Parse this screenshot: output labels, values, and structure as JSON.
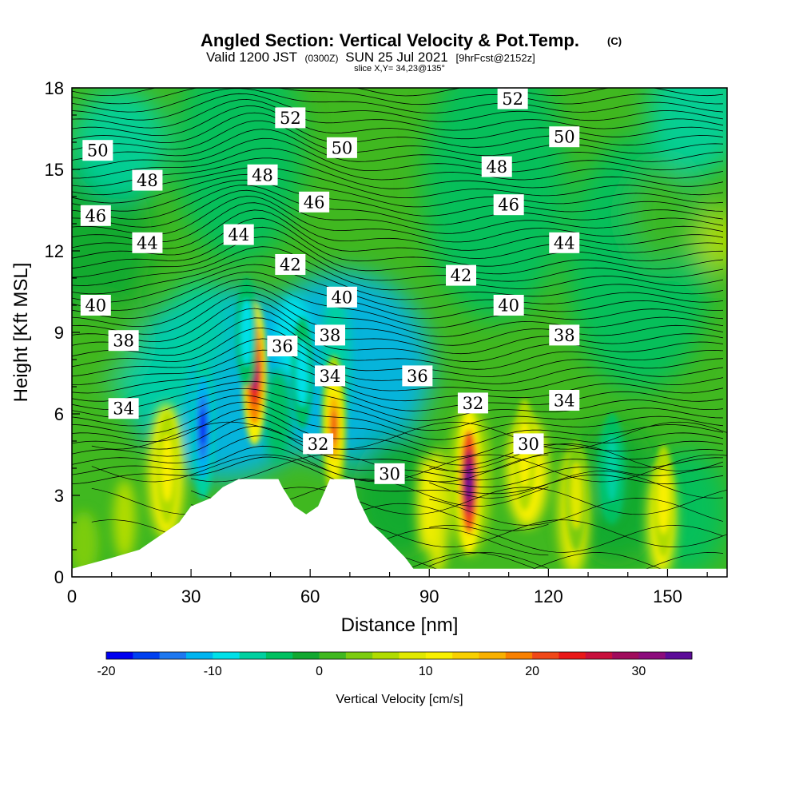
{
  "header": {
    "title": "Angled Section: Vertical Velocity & Pot.Temp.",
    "copyright": "(C)",
    "valid_prefix": "Valid 1200 JST",
    "valid_utc": "(0300Z)",
    "valid_date": "SUN 25 Jul 2021",
    "forecast": "[9hrFcst@2152z]",
    "slice": "slice X,Y= 34,23@135°"
  },
  "chart_data": {
    "type": "heatmap",
    "title": "Angled Section: Vertical Velocity & Pot.Temp.",
    "xlabel": "Distance [nm]",
    "ylabel": "Height [Kft MSL]",
    "xlim": [
      0,
      165
    ],
    "ylim": [
      0,
      18
    ],
    "x_ticks": [
      "0",
      "30",
      "60",
      "90",
      "120",
      "150"
    ],
    "y_ticks": [
      "0",
      "3",
      "6",
      "9",
      "12",
      "15",
      "18"
    ],
    "colorbar": {
      "label": "Vertical Velocity [cm/s]",
      "min": -20,
      "max": 35,
      "step": 2.5,
      "tick_labels": [
        "-20",
        "-10",
        "0",
        "10",
        "20",
        "30"
      ],
      "colors": [
        "#0000f0",
        "#0040f0",
        "#1e78f0",
        "#00b4f0",
        "#00e0e8",
        "#00d0a0",
        "#00c060",
        "#12a830",
        "#40b820",
        "#7ccc10",
        "#b0dc00",
        "#e0e800",
        "#f8f000",
        "#f8d000",
        "#f8b000",
        "#f88000",
        "#f04818",
        "#e81818",
        "#c8103c",
        "#a00c5c",
        "#8c0c7c",
        "#5c0c98"
      ]
    },
    "terrain_kft": [
      {
        "x": 0,
        "y": 0.3
      },
      {
        "x": 10,
        "y": 0.7
      },
      {
        "x": 17,
        "y": 1.0
      },
      {
        "x": 20,
        "y": 1.3
      },
      {
        "x": 23,
        "y": 1.6
      },
      {
        "x": 27,
        "y": 2.0
      },
      {
        "x": 30,
        "y": 2.6
      },
      {
        "x": 35,
        "y": 2.9
      },
      {
        "x": 38,
        "y": 3.3
      },
      {
        "x": 42,
        "y": 3.6
      },
      {
        "x": 52,
        "y": 3.6
      },
      {
        "x": 53,
        "y": 3.3
      },
      {
        "x": 56,
        "y": 2.6
      },
      {
        "x": 59,
        "y": 2.3
      },
      {
        "x": 62,
        "y": 2.6
      },
      {
        "x": 65,
        "y": 3.6
      },
      {
        "x": 71,
        "y": 3.6
      },
      {
        "x": 72,
        "y": 2.9
      },
      {
        "x": 75,
        "y": 2.0
      },
      {
        "x": 78,
        "y": 1.6
      },
      {
        "x": 80,
        "y": 1.3
      },
      {
        "x": 82,
        "y": 1.0
      },
      {
        "x": 84,
        "y": 0.7
      },
      {
        "x": 86,
        "y": 0.3
      },
      {
        "x": 165,
        "y": 0.3
      }
    ],
    "velocity_cells_cm_s": [
      {
        "x": 46,
        "y": 7.5,
        "value": 30
      },
      {
        "x": 66,
        "y": 5.5,
        "value": 20
      },
      {
        "x": 100,
        "y": 3.5,
        "value": 35
      },
      {
        "x": 24,
        "y": 4.0,
        "value": 10
      },
      {
        "x": 114,
        "y": 4.5,
        "value": 10
      },
      {
        "x": 127,
        "y": 3.0,
        "value": 9
      },
      {
        "x": 149,
        "y": 2.8,
        "value": 10
      },
      {
        "x": 33,
        "y": 5.5,
        "value": -18
      },
      {
        "x": 44,
        "y": 9.0,
        "value": -8
      },
      {
        "x": 58,
        "y": 7.5,
        "value": -10
      },
      {
        "x": 136,
        "y": 4.0,
        "value": -6
      }
    ],
    "theta_contours_K": [
      {
        "value": 52,
        "label_positions": [
          {
            "x": 55,
            "y": 16.9
          },
          {
            "x": 111,
            "y": 17.6
          }
        ]
      },
      {
        "value": 50,
        "label_positions": [
          {
            "x": 6.5,
            "y": 15.7
          },
          {
            "x": 68,
            "y": 15.8
          },
          {
            "x": 124,
            "y": 16.2
          }
        ]
      },
      {
        "value": 48,
        "label_positions": [
          {
            "x": 19,
            "y": 14.6
          },
          {
            "x": 48,
            "y": 14.8
          },
          {
            "x": 107,
            "y": 15.1
          }
        ]
      },
      {
        "value": 46,
        "label_positions": [
          {
            "x": 6,
            "y": 13.3
          },
          {
            "x": 61,
            "y": 13.8
          },
          {
            "x": 110,
            "y": 13.7
          }
        ]
      },
      {
        "value": 44,
        "label_positions": [
          {
            "x": 19,
            "y": 12.3
          },
          {
            "x": 42,
            "y": 12.6
          },
          {
            "x": 124,
            "y": 12.3
          }
        ]
      },
      {
        "value": 42,
        "label_positions": [
          {
            "x": 55,
            "y": 11.5
          },
          {
            "x": 98,
            "y": 11.1
          }
        ]
      },
      {
        "value": 40,
        "label_positions": [
          {
            "x": 6,
            "y": 10.0
          },
          {
            "x": 68,
            "y": 10.3
          },
          {
            "x": 110,
            "y": 10.0
          }
        ]
      },
      {
        "value": 38,
        "label_positions": [
          {
            "x": 13,
            "y": 8.7
          },
          {
            "x": 65,
            "y": 8.9
          },
          {
            "x": 124,
            "y": 8.9
          }
        ]
      },
      {
        "value": 36,
        "label_positions": [
          {
            "x": 53,
            "y": 8.5
          },
          {
            "x": 87,
            "y": 7.4
          }
        ]
      },
      {
        "value": 34,
        "label_positions": [
          {
            "x": 13,
            "y": 6.2
          },
          {
            "x": 65,
            "y": 7.4
          },
          {
            "x": 124,
            "y": 6.5
          }
        ]
      },
      {
        "value": 32,
        "label_positions": [
          {
            "x": 62,
            "y": 4.9
          },
          {
            "x": 101,
            "y": 6.4
          }
        ]
      },
      {
        "value": 30,
        "label_positions": [
          {
            "x": 80,
            "y": 3.8
          },
          {
            "x": 115,
            "y": 4.9
          }
        ]
      }
    ]
  }
}
